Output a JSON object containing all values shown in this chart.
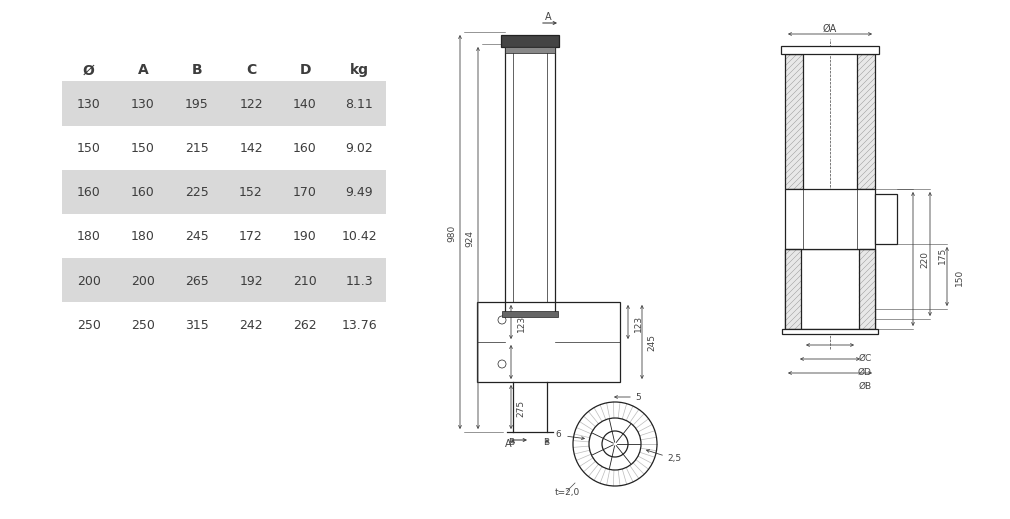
{
  "table_headers": [
    "Ø",
    "A",
    "B",
    "C",
    "D",
    "kg"
  ],
  "table_rows": [
    [
      "130",
      "130",
      "195",
      "122",
      "140",
      "8.11"
    ],
    [
      "150",
      "150",
      "215",
      "142",
      "160",
      "9.02"
    ],
    [
      "160",
      "160",
      "225",
      "152",
      "170",
      "9.49"
    ],
    [
      "180",
      "180",
      "245",
      "172",
      "190",
      "10.42"
    ],
    [
      "200",
      "200",
      "265",
      "192",
      "210",
      "11.3"
    ],
    [
      "250",
      "250",
      "315",
      "242",
      "262",
      "13.76"
    ]
  ],
  "shaded_rows": [
    0,
    2,
    4
  ],
  "row_shade_color": "#d9d9d9",
  "bg_color": "#ffffff",
  "text_color": "#3d3d3d",
  "dim_color": "#444444",
  "line_color": "#222222",
  "hatch_color": "#999999"
}
